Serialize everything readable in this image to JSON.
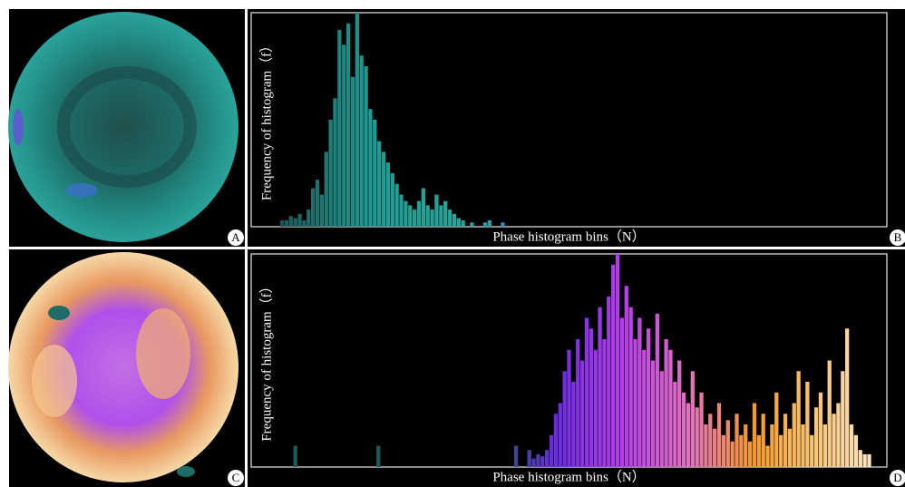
{
  "panel_labels": [
    "A",
    "B",
    "C",
    "D"
  ],
  "chart_data": [
    {
      "type": "histogram",
      "xlabel": "Phase histogram bins（N）",
      "ylabel": "Frequency of histogram（f）",
      "xlim": [
        0,
        360
      ],
      "ylim": [
        0,
        100
      ],
      "colormap": [
        "#1c4f4c",
        "#1f9b93",
        "#2aa49a",
        "#3a6fd0",
        "#6a3ee0"
      ],
      "x": [
        17.5,
        20,
        22.5,
        25,
        27.5,
        30,
        32.5,
        35,
        37.5,
        40,
        42.5,
        45,
        47.5,
        50,
        52.5,
        55,
        57.5,
        60,
        62.5,
        65,
        67.5,
        70,
        72.5,
        75,
        77.5,
        80,
        82.5,
        85,
        87.5,
        90,
        92.5,
        95,
        97.5,
        100,
        102.5,
        105,
        107.5,
        110,
        112.5,
        115,
        117.5,
        120,
        125,
        132.5,
        135,
        142.5
      ],
      "values": [
        3,
        3,
        5,
        4,
        6,
        3,
        8,
        18,
        22,
        15,
        35,
        50,
        60,
        92,
        85,
        95,
        70,
        100,
        80,
        75,
        55,
        50,
        40,
        35,
        30,
        25,
        20,
        15,
        12,
        10,
        8,
        12,
        18,
        10,
        8,
        15,
        10,
        12,
        8,
        6,
        4,
        3,
        2,
        2,
        3,
        2
      ]
    },
    {
      "type": "histogram",
      "xlabel": "Phase histogram bins（N）",
      "ylabel": "Frequency of histogram（f）",
      "xlim": [
        0,
        360
      ],
      "ylim": [
        0,
        100
      ],
      "colormap": [
        "#1d5a55",
        "#6a2ce0",
        "#b33ee8",
        "#e070c0",
        "#f59a2a",
        "#f8c880",
        "#fbeed8"
      ],
      "x": [
        25,
        72,
        150,
        157.5,
        160,
        162.5,
        165,
        167.5,
        170,
        172.5,
        175,
        177.5,
        180,
        182.5,
        185,
        187.5,
        190,
        192.5,
        195,
        197.5,
        200,
        202.5,
        205,
        207.5,
        210,
        212.5,
        215,
        217.5,
        220,
        222.5,
        225,
        227.5,
        230,
        232.5,
        235,
        237.5,
        240,
        242.5,
        245,
        247.5,
        250,
        252.5,
        255,
        257.5,
        260,
        262.5,
        265,
        267.5,
        270,
        272.5,
        275,
        277.5,
        280,
        282.5,
        285,
        287.5,
        290,
        292.5,
        295,
        297.5,
        300,
        302.5,
        305,
        307.5,
        310,
        312.5,
        315,
        317.5,
        320,
        322.5,
        325,
        327.5,
        330,
        332.5,
        335,
        337.5,
        340,
        342.5,
        345,
        347.5,
        350
      ],
      "values": [
        10,
        10,
        10,
        8,
        4,
        6,
        5,
        8,
        15,
        25,
        30,
        45,
        55,
        40,
        60,
        50,
        70,
        65,
        55,
        75,
        60,
        80,
        95,
        100,
        70,
        85,
        75,
        60,
        70,
        55,
        65,
        50,
        72,
        45,
        60,
        55,
        40,
        50,
        35,
        30,
        45,
        28,
        35,
        20,
        25,
        18,
        30,
        15,
        22,
        12,
        25,
        15,
        20,
        12,
        30,
        15,
        25,
        10,
        20,
        35,
        15,
        25,
        18,
        30,
        45,
        20,
        40,
        15,
        28,
        35,
        20,
        50,
        25,
        30,
        45,
        65,
        20,
        15,
        8,
        6,
        6
      ]
    }
  ]
}
